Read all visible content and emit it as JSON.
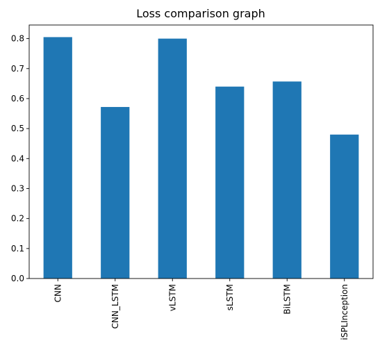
{
  "chart_data": {
    "type": "bar",
    "title": "Loss comparison graph",
    "xlabel": "",
    "ylabel": "",
    "categories": [
      "CNN",
      "CNN_LSTM",
      "vLSTM",
      "sLSTM",
      "BiLSTM",
      "iSPLInception"
    ],
    "values": [
      0.805,
      0.572,
      0.8,
      0.64,
      0.657,
      0.48
    ],
    "ylim": [
      0,
      0.8454
    ],
    "yticks": [
      "0.0",
      "0.1",
      "0.2",
      "0.3",
      "0.4",
      "0.5",
      "0.6",
      "0.7",
      "0.8"
    ],
    "grid": false,
    "legend": "none",
    "bar_color": "#1f77b4"
  }
}
